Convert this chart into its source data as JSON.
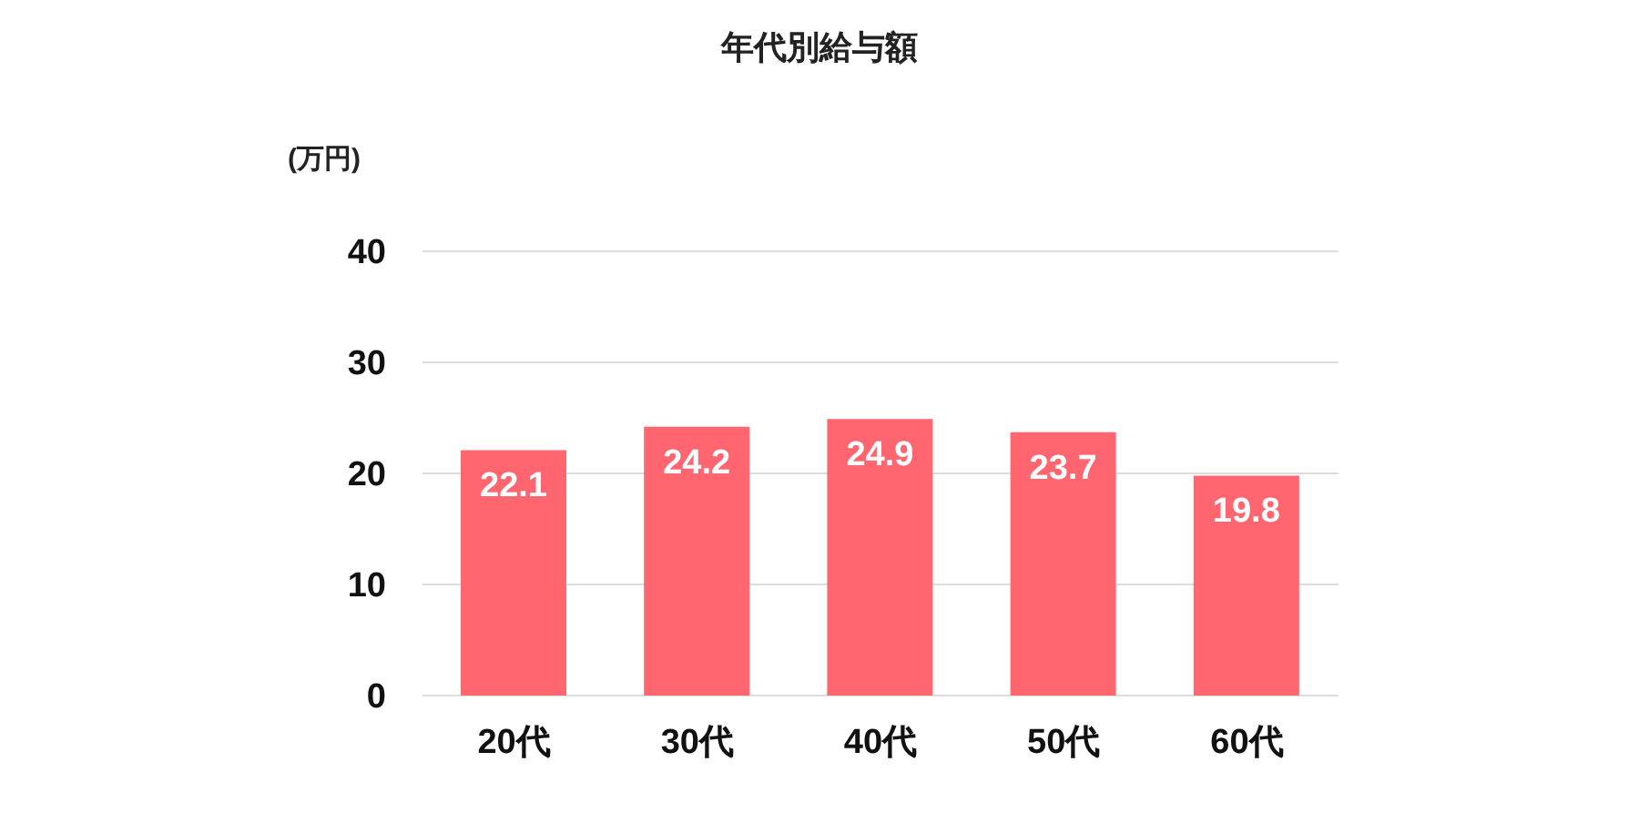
{
  "chart_data": {
    "type": "bar",
    "title": "年代別給与額",
    "ylabel": "(万円)",
    "categories": [
      "20代",
      "30代",
      "40代",
      "50代",
      "60代"
    ],
    "values": [
      22.1,
      24.2,
      24.9,
      23.7,
      19.8
    ],
    "color": "#ff6670",
    "ylim": [
      0,
      40
    ],
    "yticks": [
      0,
      10,
      20,
      30,
      40
    ],
    "grid": "y",
    "data_labels": true,
    "legend": false
  }
}
